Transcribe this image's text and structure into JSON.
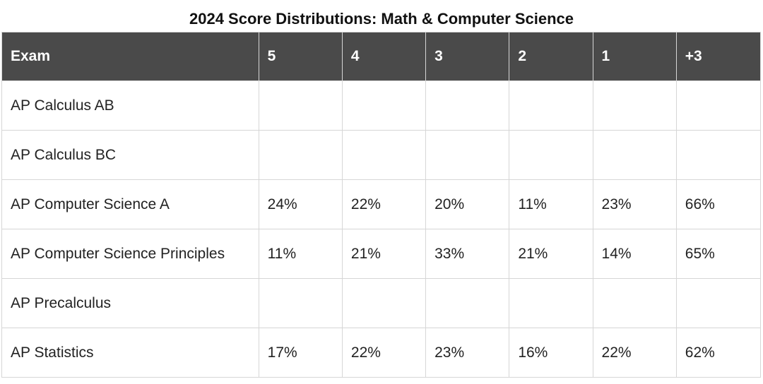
{
  "title": "2024 Score Distributions: Math & Computer Science",
  "table": {
    "headers": [
      "Exam",
      "5",
      "4",
      "3",
      "2",
      "1",
      "+3"
    ],
    "rows": [
      {
        "exam": "AP Calculus AB",
        "s5": "",
        "s4": "",
        "s3": "",
        "s2": "",
        "s1": "",
        "plus3": ""
      },
      {
        "exam": "AP Calculus BC",
        "s5": "",
        "s4": "",
        "s3": "",
        "s2": "",
        "s1": "",
        "plus3": ""
      },
      {
        "exam": "AP Computer Science A",
        "s5": "24%",
        "s4": "22%",
        "s3": "20%",
        "s2": "11%",
        "s1": "23%",
        "plus3": "66%"
      },
      {
        "exam": "AP Computer Science Principles",
        "s5": "11%",
        "s4": "21%",
        "s3": "33%",
        "s2": "21%",
        "s1": "14%",
        "plus3": "65%"
      },
      {
        "exam": "AP Precalculus",
        "s5": "",
        "s4": "",
        "s3": "",
        "s2": "",
        "s1": "",
        "plus3": ""
      },
      {
        "exam": "AP Statistics",
        "s5": "17%",
        "s4": "22%",
        "s3": "23%",
        "s2": "16%",
        "s1": "22%",
        "plus3": "62%"
      }
    ]
  }
}
